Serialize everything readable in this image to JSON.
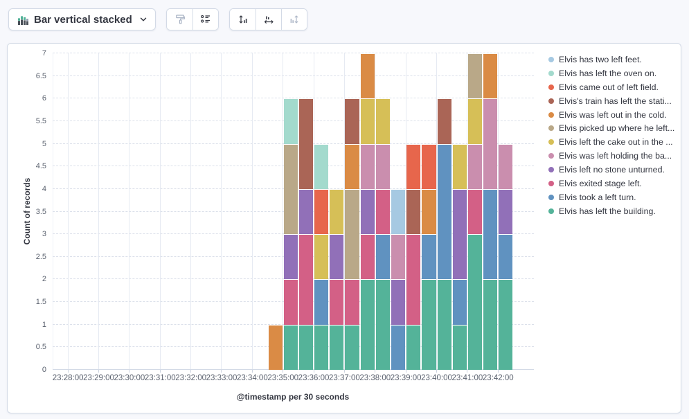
{
  "toolbar": {
    "chart_switcher": {
      "label": "Bar vertical stacked"
    },
    "buttons": [
      {
        "name": "visual-options",
        "icon": "paint-brush-icon",
        "disabled": true
      },
      {
        "name": "legend-settings",
        "icon": "list-legend-icon",
        "disabled": false
      },
      {
        "name": "left-axis",
        "icon": "fit-vertical-axis-icon",
        "disabled": false
      },
      {
        "name": "bottom-axis",
        "icon": "fit-horizontal-axis-icon",
        "disabled": false
      },
      {
        "name": "right-axis",
        "icon": "fit-right-axis-icon",
        "disabled": true
      }
    ]
  },
  "chart": {
    "y_axis": {
      "title": "Count of records",
      "tick_labels": [
        "0",
        "0.5",
        "1",
        "1.5",
        "2",
        "2.5",
        "3",
        "3.5",
        "4",
        "4.5",
        "5",
        "5.5",
        "6",
        "6.5",
        "7"
      ],
      "max": 7
    },
    "x_axis": {
      "title": "@timestamp per 30 seconds",
      "tick_labels": [
        "23:28:00",
        "23:29:00",
        "23:30:00",
        "23:31:00",
        "23:32:00",
        "23:33:00",
        "23:34:00",
        "23:35:00",
        "23:36:00",
        "23:37:00",
        "23:38:00",
        "23:39:00",
        "23:40:00",
        "23:41:00",
        "23:42:00"
      ]
    },
    "legend": {
      "items": [
        {
          "label": "Elvis has two left feet.",
          "color": "#A6C9E2"
        },
        {
          "label": "Elvis has left the oven on.",
          "color": "#A3DACD"
        },
        {
          "label": "Elvis came out of left field.",
          "color": "#E7664C"
        },
        {
          "label": "Elvis's train has left the stati...",
          "color": "#AA6556"
        },
        {
          "label": "Elvis was left out in the cold.",
          "color": "#DA8B45"
        },
        {
          "label": "Elvis picked up where he left...",
          "color": "#B9A888"
        },
        {
          "label": "Elvis left the cake out in the ...",
          "color": "#D6BF57"
        },
        {
          "label": "Elvis was left holding the ba...",
          "color": "#CA8EAE"
        },
        {
          "label": "Elvis left no stone unturned.",
          "color": "#9170B8"
        },
        {
          "label": "Elvis exited stage left.",
          "color": "#D36086"
        },
        {
          "label": "Elvis took a left turn.",
          "color": "#6092C0"
        },
        {
          "label": "Elvis has left the building.",
          "color": "#54B399"
        }
      ]
    }
  },
  "chart_data": {
    "type": "bar",
    "stacked": true,
    "title": "",
    "xlabel": "@timestamp per 30 seconds",
    "ylabel": "Count of records",
    "ylim": [
      0,
      7
    ],
    "y_tick_step": 0.5,
    "grid": true,
    "legend_position": "right",
    "x_interval_seconds": 30,
    "x_domain": [
      "23:27:30",
      "23:43:10"
    ],
    "x_tick_labels": [
      "23:28:00",
      "23:29:00",
      "23:30:00",
      "23:31:00",
      "23:32:00",
      "23:33:00",
      "23:34:00",
      "23:35:00",
      "23:36:00",
      "23:37:00",
      "23:38:00",
      "23:39:00",
      "23:40:00",
      "23:41:00",
      "23:42:00"
    ],
    "categories": [
      "23:34:30",
      "23:35:00",
      "23:35:30",
      "23:36:00",
      "23:36:30",
      "23:37:00",
      "23:37:30",
      "23:38:00",
      "23:38:30",
      "23:39:00",
      "23:39:30",
      "23:40:00",
      "23:40:30",
      "23:41:00",
      "23:41:30",
      "23:42:00"
    ],
    "series": [
      {
        "name": "Elvis has left the building.",
        "color": "#54B399",
        "values": [
          0,
          1,
          1,
          1,
          1,
          1,
          2,
          2,
          0,
          1,
          2,
          2,
          1,
          3,
          2,
          2
        ]
      },
      {
        "name": "Elvis took a left turn.",
        "color": "#6092C0",
        "values": [
          0,
          0,
          0,
          1,
          0,
          0,
          0,
          1,
          1,
          0,
          1,
          3,
          1,
          0,
          2,
          1
        ]
      },
      {
        "name": "Elvis exited stage left.",
        "color": "#D36086",
        "values": [
          0,
          1,
          2,
          0,
          1,
          1,
          1,
          1,
          0,
          2,
          0,
          0,
          0,
          1,
          0,
          0
        ]
      },
      {
        "name": "Elvis left no stone unturned.",
        "color": "#9170B8",
        "values": [
          0,
          1,
          1,
          0,
          1,
          0,
          1,
          0,
          1,
          0,
          0,
          0,
          2,
          0,
          0,
          1
        ]
      },
      {
        "name": "Elvis was left holding the ba...",
        "color": "#CA8EAE",
        "values": [
          0,
          0,
          0,
          0,
          0,
          0,
          1,
          1,
          1,
          0,
          0,
          0,
          0,
          1,
          2,
          1
        ]
      },
      {
        "name": "Elvis left the cake out in the ...",
        "color": "#D6BF57",
        "values": [
          0,
          0,
          0,
          1,
          1,
          0,
          1,
          1,
          0,
          0,
          0,
          0,
          1,
          1,
          0,
          0
        ]
      },
      {
        "name": "Elvis picked up where he left...",
        "color": "#B9A888",
        "values": [
          0,
          2,
          0,
          0,
          0,
          2,
          0,
          0,
          0,
          0,
          0,
          0,
          0,
          1,
          0,
          0
        ]
      },
      {
        "name": "Elvis was left out in the cold.",
        "color": "#DA8B45",
        "values": [
          1,
          0,
          0,
          0,
          0,
          1,
          1,
          0,
          0,
          0,
          1,
          0,
          0,
          0,
          1,
          0
        ]
      },
      {
        "name": "Elvis's train has left the stati...",
        "color": "#AA6556",
        "values": [
          0,
          0,
          2,
          0,
          0,
          1,
          0,
          0,
          0,
          1,
          0,
          1,
          0,
          0,
          0,
          0
        ]
      },
      {
        "name": "Elvis came out of left field.",
        "color": "#E7664C",
        "values": [
          0,
          0,
          0,
          1,
          0,
          0,
          0,
          0,
          0,
          1,
          1,
          0,
          0,
          0,
          0,
          0
        ]
      },
      {
        "name": "Elvis has left the oven on.",
        "color": "#A3DACD",
        "values": [
          0,
          1,
          0,
          1,
          0,
          0,
          0,
          0,
          0,
          0,
          0,
          0,
          0,
          0,
          0,
          0
        ]
      },
      {
        "name": "Elvis has two left feet.",
        "color": "#A6C9E2",
        "values": [
          0,
          0,
          0,
          0,
          0,
          0,
          0,
          0,
          1,
          0,
          0,
          0,
          0,
          0,
          0,
          0
        ]
      }
    ]
  }
}
